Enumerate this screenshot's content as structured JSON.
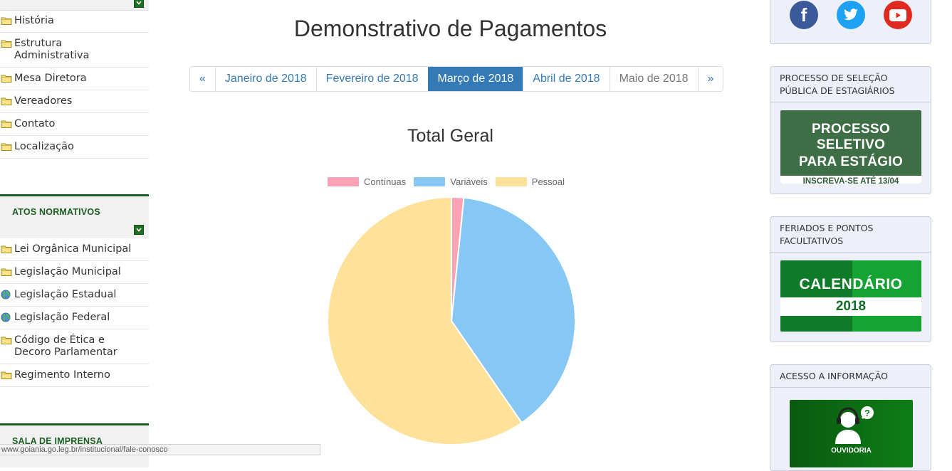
{
  "left_sidebar": {
    "institutional_items": [
      {
        "label": "História",
        "icon": "folder-icon"
      },
      {
        "label": "Estrutura Administrativa",
        "icon": "folder-icon"
      },
      {
        "label": "Mesa Diretora",
        "icon": "folder-icon"
      },
      {
        "label": "Vereadores",
        "icon": "folder-icon"
      },
      {
        "label": "Contato",
        "icon": "folder-icon"
      },
      {
        "label": "Localização",
        "icon": "folder-icon"
      }
    ],
    "atos_title": "ATOS NORMATIVOS",
    "atos_items": [
      {
        "label": "Lei Orgânica Municipal",
        "icon": "folder-icon"
      },
      {
        "label": "Legislação Municipal",
        "icon": "folder-icon"
      },
      {
        "label": "Legislação Estadual",
        "icon": "globe-icon"
      },
      {
        "label": "Legislação Federal",
        "icon": "globe-icon"
      },
      {
        "label": "Código de Ética e Decoro Parlamentar",
        "icon": "folder-icon"
      },
      {
        "label": "Regimento Interno",
        "icon": "folder-icon"
      }
    ],
    "imprensa_title": "SALA DE IMPRENSA"
  },
  "main": {
    "title": "Demonstrativo de Pagamentos",
    "pagination": {
      "prev": "«",
      "next": "»",
      "months": [
        "Janeiro de 2018",
        "Fevereiro de 2018",
        "Março de 2018",
        "Abril de 2018",
        "Maio de 2018"
      ],
      "active_index": 2,
      "disabled_index": 4
    }
  },
  "chart_data": {
    "type": "pie",
    "title": "Total Geral",
    "legend_position": "top",
    "labels": [
      "Contínuas",
      "Variáveis",
      "Pessoal"
    ],
    "values": [
      1.6,
      38.8,
      59.6
    ],
    "colors": [
      "#ffa1b5",
      "#86c7f3",
      "#ffe29a"
    ]
  },
  "right_sidebar": {
    "social": [
      {
        "icon": "facebook-icon",
        "color": "#3b5998",
        "glyph": "f"
      },
      {
        "icon": "twitter-icon",
        "color": "#1da1f2",
        "glyph": ""
      },
      {
        "icon": "youtube-icon",
        "color": "#e02a20",
        "glyph": ""
      }
    ],
    "estagio": {
      "header": "PROCESSO DE SELEÇÃO PÚBLICA DE ESTAGIÁRIOS",
      "line1": "PROCESSO SELETIVO",
      "line2": "PARA ESTÁGIO",
      "strip": "INSCREVA-SE ATÉ 13/04"
    },
    "feriados": {
      "header": "FERIADOS E PONTOS FACULTATIVOS",
      "line1": "CALENDÁRIO",
      "line2": "2018"
    },
    "acesso": {
      "header": "ACESSO A INFORMAÇÃO",
      "label": "OUVIDORIA"
    }
  },
  "status_url": "www.goiania.go.leg.br/institucional/fale-conosco"
}
